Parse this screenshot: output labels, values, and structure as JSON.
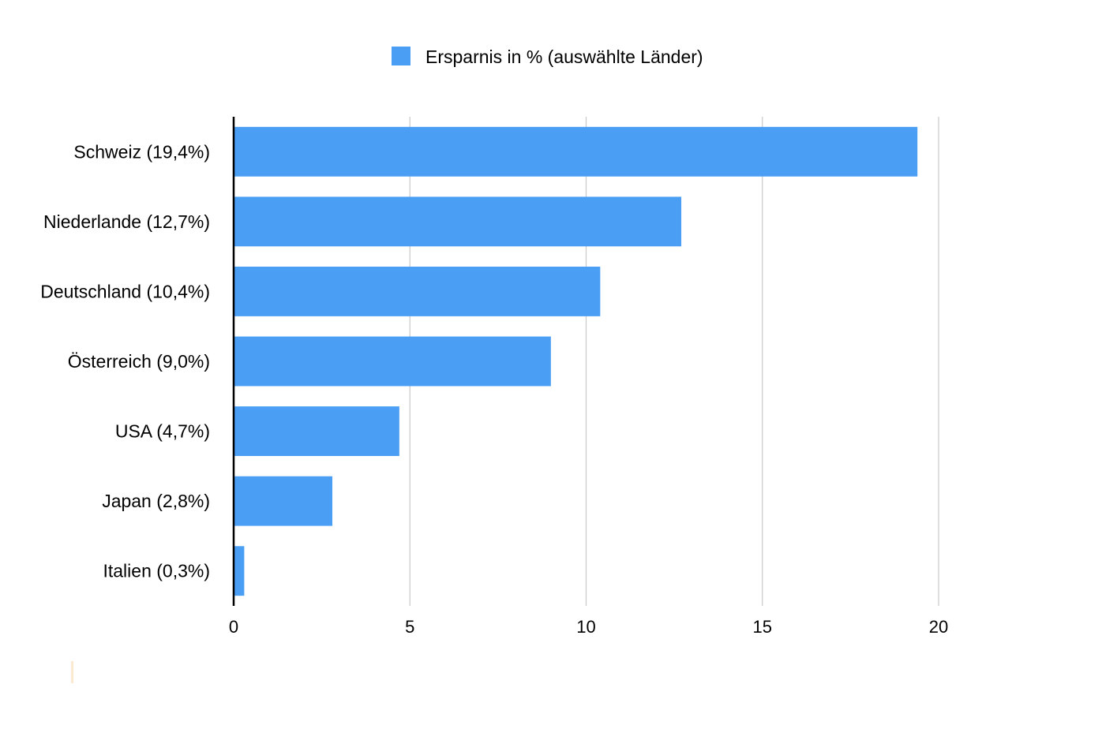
{
  "chart_data": {
    "type": "bar",
    "orientation": "horizontal",
    "categories": [
      "Schweiz (19,4%)",
      "Niederlande (12,7%)",
      "Deutschland (10,4%)",
      "Österreich (9,0%)",
      "USA (4,7%)",
      "Japan (2,8%)",
      "Italien (0,3%)"
    ],
    "series": [
      {
        "name": "Ersparnis in % (auswählte Länder)",
        "color": "#4a9ff5",
        "values": [
          19.4,
          12.7,
          10.4,
          9.0,
          4.7,
          2.8,
          0.3
        ]
      }
    ],
    "xticks": [
      "0",
      "5",
      "10",
      "15",
      "20"
    ],
    "xlim": [
      0,
      20
    ],
    "grid": true,
    "legend_position": "top-center"
  },
  "colors": {
    "bar": "#4a9ff5",
    "grid": "#c8c8c8",
    "axis": "#000000",
    "accent_mark": "#fbe9d2"
  }
}
